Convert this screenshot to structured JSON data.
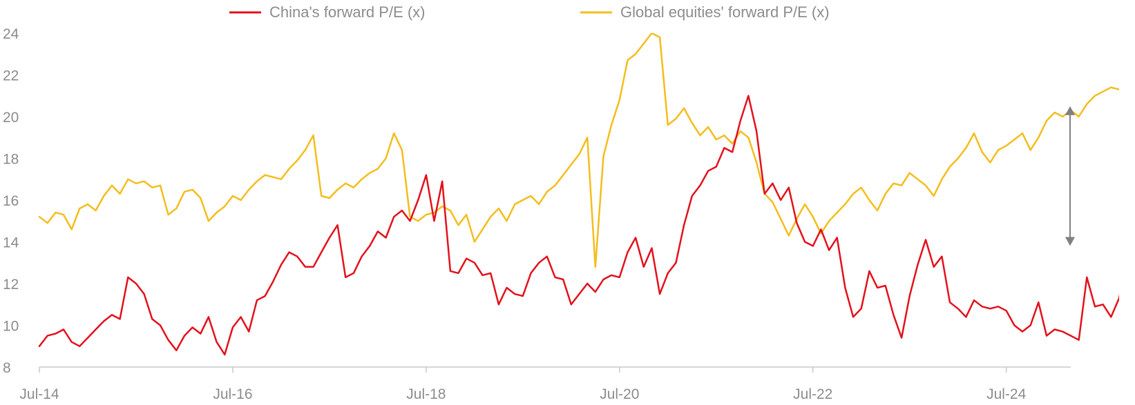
{
  "chart_data": {
    "type": "line",
    "title": "",
    "xlabel": "",
    "ylabel": "",
    "x_range": [
      "2014-07",
      "2025-03"
    ],
    "ylim": [
      8,
      24
    ],
    "y_ticks": [
      "8",
      "10",
      "12",
      "14",
      "16",
      "18",
      "20",
      "22",
      "24"
    ],
    "x_ticks": [
      {
        "date": "2014-07",
        "label": "Jul-14"
      },
      {
        "date": "2016-07",
        "label": "Jul-16"
      },
      {
        "date": "2018-07",
        "label": "Jul-18"
      },
      {
        "date": "2020-07",
        "label": "Jul-20"
      },
      {
        "date": "2022-07",
        "label": "Jul-22"
      },
      {
        "date": "2024-07",
        "label": "Jul-24"
      }
    ],
    "grid": false,
    "legend_position": "top-center",
    "annotation": {
      "type": "double-arrow",
      "date": "2025-02",
      "from": 13.8,
      "to": 20.5,
      "color": "#808080"
    },
    "series": [
      {
        "name": "China's forward P/E (x)",
        "color": "#e3101b",
        "points": [
          [
            "2014-07",
            9.0
          ],
          [
            "2014-08",
            9.5
          ],
          [
            "2014-09",
            9.6
          ],
          [
            "2014-10",
            9.8
          ],
          [
            "2014-11",
            9.2
          ],
          [
            "2014-12",
            9.0
          ],
          [
            "2015-01",
            9.4
          ],
          [
            "2015-02",
            9.8
          ],
          [
            "2015-03",
            10.2
          ],
          [
            "2015-04",
            10.5
          ],
          [
            "2015-05",
            10.3
          ],
          [
            "2015-06",
            12.3
          ],
          [
            "2015-07",
            12.0
          ],
          [
            "2015-08",
            11.5
          ],
          [
            "2015-09",
            10.3
          ],
          [
            "2015-10",
            10.0
          ],
          [
            "2015-11",
            9.3
          ],
          [
            "2015-12",
            8.8
          ],
          [
            "2016-01",
            9.5
          ],
          [
            "2016-02",
            9.9
          ],
          [
            "2016-03",
            9.6
          ],
          [
            "2016-04",
            10.4
          ],
          [
            "2016-05",
            9.2
          ],
          [
            "2016-06",
            8.6
          ],
          [
            "2016-07",
            9.9
          ],
          [
            "2016-08",
            10.4
          ],
          [
            "2016-09",
            9.7
          ],
          [
            "2016-10",
            11.2
          ],
          [
            "2016-11",
            11.4
          ],
          [
            "2016-12",
            12.1
          ],
          [
            "2017-01",
            12.9
          ],
          [
            "2017-02",
            13.5
          ],
          [
            "2017-03",
            13.3
          ],
          [
            "2017-04",
            12.8
          ],
          [
            "2017-05",
            12.8
          ],
          [
            "2017-06",
            13.5
          ],
          [
            "2017-07",
            14.2
          ],
          [
            "2017-08",
            14.8
          ],
          [
            "2017-09",
            12.3
          ],
          [
            "2017-10",
            12.5
          ],
          [
            "2017-11",
            13.3
          ],
          [
            "2017-12",
            13.8
          ],
          [
            "2018-01",
            14.5
          ],
          [
            "2018-02",
            14.2
          ],
          [
            "2018-03",
            15.2
          ],
          [
            "2018-04",
            15.5
          ],
          [
            "2018-05",
            15.0
          ],
          [
            "2018-06",
            16.0
          ],
          [
            "2018-07",
            17.2
          ],
          [
            "2018-08",
            15.0
          ],
          [
            "2018-09",
            16.9
          ],
          [
            "2018-10",
            12.6
          ],
          [
            "2018-11",
            12.5
          ],
          [
            "2018-12",
            13.2
          ],
          [
            "2019-01",
            13.0
          ],
          [
            "2019-02",
            12.4
          ],
          [
            "2019-03",
            12.5
          ],
          [
            "2019-04",
            11.0
          ],
          [
            "2019-05",
            11.8
          ],
          [
            "2019-06",
            11.5
          ],
          [
            "2019-07",
            11.4
          ],
          [
            "2019-08",
            12.5
          ],
          [
            "2019-09",
            13.0
          ],
          [
            "2019-10",
            13.3
          ],
          [
            "2019-11",
            12.3
          ],
          [
            "2019-12",
            12.2
          ],
          [
            "2020-01",
            11.0
          ],
          [
            "2020-02",
            11.5
          ],
          [
            "2020-03",
            12.0
          ],
          [
            "2020-04",
            11.6
          ],
          [
            "2020-05",
            12.2
          ],
          [
            "2020-06",
            12.4
          ],
          [
            "2020-07",
            12.3
          ],
          [
            "2020-08",
            13.5
          ],
          [
            "2020-09",
            14.2
          ],
          [
            "2020-10",
            12.8
          ],
          [
            "2020-11",
            13.7
          ],
          [
            "2020-12",
            11.5
          ],
          [
            "2021-01",
            12.5
          ],
          [
            "2021-02",
            13.0
          ],
          [
            "2021-03",
            14.8
          ],
          [
            "2021-04",
            16.2
          ],
          [
            "2021-05",
            16.7
          ],
          [
            "2021-06",
            17.4
          ],
          [
            "2021-07",
            17.6
          ],
          [
            "2021-08",
            18.5
          ],
          [
            "2021-09",
            18.3
          ],
          [
            "2021-10",
            19.8
          ],
          [
            "2021-11",
            21.0
          ],
          [
            "2021-12",
            19.3
          ],
          [
            "2022-01",
            16.3
          ],
          [
            "2022-02",
            16.8
          ],
          [
            "2022-03",
            16.0
          ],
          [
            "2022-04",
            16.6
          ],
          [
            "2022-05",
            14.9
          ],
          [
            "2022-06",
            14.0
          ],
          [
            "2022-07",
            13.8
          ],
          [
            "2022-08",
            14.6
          ],
          [
            "2022-09",
            13.6
          ],
          [
            "2022-10",
            14.2
          ],
          [
            "2022-11",
            11.8
          ],
          [
            "2022-12",
            10.4
          ],
          [
            "2023-01",
            10.8
          ],
          [
            "2023-02",
            12.6
          ],
          [
            "2023-03",
            11.8
          ],
          [
            "2023-04",
            11.9
          ],
          [
            "2023-05",
            10.5
          ],
          [
            "2023-06",
            9.4
          ],
          [
            "2023-07",
            11.4
          ],
          [
            "2023-08",
            12.9
          ],
          [
            "2023-09",
            14.1
          ],
          [
            "2023-10",
            12.8
          ],
          [
            "2023-11",
            13.3
          ],
          [
            "2023-12",
            11.1
          ],
          [
            "2024-01",
            10.8
          ],
          [
            "2024-02",
            10.4
          ],
          [
            "2024-03",
            11.2
          ],
          [
            "2024-04",
            10.9
          ],
          [
            "2024-05",
            10.8
          ],
          [
            "2024-06",
            10.9
          ],
          [
            "2024-07",
            10.7
          ],
          [
            "2024-08",
            10.0
          ],
          [
            "2024-09",
            9.7
          ],
          [
            "2024-10",
            10.0
          ],
          [
            "2024-11",
            11.1
          ],
          [
            "2024-12",
            9.5
          ],
          [
            "2025-01",
            9.8
          ],
          [
            "2025-02",
            9.7
          ],
          [
            "2025-03",
            9.5
          ],
          [
            "2025-04",
            9.3
          ],
          [
            "2025-05",
            12.3
          ],
          [
            "2025-06",
            10.9
          ],
          [
            "2025-07",
            11.0
          ],
          [
            "2025-08",
            10.4
          ],
          [
            "2025-09",
            11.3
          ],
          [
            "2025-10",
            13.1
          ]
        ]
      },
      {
        "name": "Global equities' forward P/E (x)",
        "color": "#f5bc1c",
        "points": [
          [
            "2014-07",
            15.2
          ],
          [
            "2014-08",
            14.9
          ],
          [
            "2014-09",
            15.4
          ],
          [
            "2014-10",
            15.3
          ],
          [
            "2014-11",
            14.6
          ],
          [
            "2014-12",
            15.6
          ],
          [
            "2015-01",
            15.8
          ],
          [
            "2015-02",
            15.5
          ],
          [
            "2015-03",
            16.2
          ],
          [
            "2015-04",
            16.7
          ],
          [
            "2015-05",
            16.3
          ],
          [
            "2015-06",
            17.0
          ],
          [
            "2015-07",
            16.8
          ],
          [
            "2015-08",
            16.9
          ],
          [
            "2015-09",
            16.6
          ],
          [
            "2015-10",
            16.7
          ],
          [
            "2015-11",
            15.3
          ],
          [
            "2015-12",
            15.6
          ],
          [
            "2016-01",
            16.4
          ],
          [
            "2016-02",
            16.5
          ],
          [
            "2016-03",
            16.1
          ],
          [
            "2016-04",
            15.0
          ],
          [
            "2016-05",
            15.4
          ],
          [
            "2016-06",
            15.7
          ],
          [
            "2016-07",
            16.2
          ],
          [
            "2016-08",
            16.0
          ],
          [
            "2016-09",
            16.5
          ],
          [
            "2016-10",
            16.9
          ],
          [
            "2016-11",
            17.2
          ],
          [
            "2016-12",
            17.1
          ],
          [
            "2017-01",
            17.0
          ],
          [
            "2017-02",
            17.5
          ],
          [
            "2017-03",
            17.9
          ],
          [
            "2017-04",
            18.4
          ],
          [
            "2017-05",
            19.1
          ],
          [
            "2017-06",
            16.2
          ],
          [
            "2017-07",
            16.1
          ],
          [
            "2017-08",
            16.5
          ],
          [
            "2017-09",
            16.8
          ],
          [
            "2017-10",
            16.6
          ],
          [
            "2017-11",
            17.0
          ],
          [
            "2017-12",
            17.3
          ],
          [
            "2018-01",
            17.5
          ],
          [
            "2018-02",
            18.0
          ],
          [
            "2018-03",
            19.2
          ],
          [
            "2018-04",
            18.4
          ],
          [
            "2018-05",
            15.2
          ],
          [
            "2018-06",
            15.0
          ],
          [
            "2018-07",
            15.3
          ],
          [
            "2018-08",
            15.4
          ],
          [
            "2018-09",
            15.7
          ],
          [
            "2018-10",
            15.5
          ],
          [
            "2018-11",
            14.8
          ],
          [
            "2018-12",
            15.3
          ],
          [
            "2019-01",
            14.0
          ],
          [
            "2019-02",
            14.6
          ],
          [
            "2019-03",
            15.2
          ],
          [
            "2019-04",
            15.6
          ],
          [
            "2019-05",
            15.0
          ],
          [
            "2019-06",
            15.8
          ],
          [
            "2019-07",
            16.0
          ],
          [
            "2019-08",
            16.2
          ],
          [
            "2019-09",
            15.8
          ],
          [
            "2019-10",
            16.4
          ],
          [
            "2019-11",
            16.7
          ],
          [
            "2019-12",
            17.2
          ],
          [
            "2020-01",
            17.7
          ],
          [
            "2020-02",
            18.2
          ],
          [
            "2020-03",
            19.0
          ],
          [
            "2020-04",
            12.8
          ],
          [
            "2020-05",
            18.1
          ],
          [
            "2020-06",
            19.6
          ],
          [
            "2020-07",
            20.8
          ],
          [
            "2020-08",
            22.7
          ],
          [
            "2020-09",
            23.0
          ],
          [
            "2020-10",
            23.5
          ],
          [
            "2020-11",
            24.0
          ],
          [
            "2020-12",
            23.8
          ],
          [
            "2021-01",
            19.6
          ],
          [
            "2021-02",
            19.9
          ],
          [
            "2021-03",
            20.4
          ],
          [
            "2021-04",
            19.7
          ],
          [
            "2021-05",
            19.1
          ],
          [
            "2021-06",
            19.5
          ],
          [
            "2021-07",
            18.9
          ],
          [
            "2021-08",
            19.1
          ],
          [
            "2021-09",
            18.7
          ],
          [
            "2021-10",
            19.3
          ],
          [
            "2021-11",
            19.0
          ],
          [
            "2021-12",
            17.8
          ],
          [
            "2022-01",
            16.3
          ],
          [
            "2022-02",
            15.9
          ],
          [
            "2022-03",
            15.1
          ],
          [
            "2022-04",
            14.3
          ],
          [
            "2022-05",
            15.1
          ],
          [
            "2022-06",
            15.8
          ],
          [
            "2022-07",
            15.2
          ],
          [
            "2022-08",
            14.4
          ],
          [
            "2022-09",
            15.0
          ],
          [
            "2022-10",
            15.4
          ],
          [
            "2022-11",
            15.8
          ],
          [
            "2022-12",
            16.3
          ],
          [
            "2023-01",
            16.6
          ],
          [
            "2023-02",
            16.0
          ],
          [
            "2023-03",
            15.5
          ],
          [
            "2023-04",
            16.3
          ],
          [
            "2023-05",
            16.8
          ],
          [
            "2023-06",
            16.7
          ],
          [
            "2023-07",
            17.3
          ],
          [
            "2023-08",
            17.0
          ],
          [
            "2023-09",
            16.7
          ],
          [
            "2023-10",
            16.2
          ],
          [
            "2023-11",
            17.0
          ],
          [
            "2023-12",
            17.6
          ],
          [
            "2024-01",
            18.0
          ],
          [
            "2024-02",
            18.5
          ],
          [
            "2024-03",
            19.2
          ],
          [
            "2024-04",
            18.3
          ],
          [
            "2024-05",
            17.8
          ],
          [
            "2024-06",
            18.4
          ],
          [
            "2024-07",
            18.6
          ],
          [
            "2024-08",
            18.9
          ],
          [
            "2024-09",
            19.2
          ],
          [
            "2024-10",
            18.4
          ],
          [
            "2024-11",
            19.0
          ],
          [
            "2024-12",
            19.8
          ],
          [
            "2025-01",
            20.2
          ],
          [
            "2025-02",
            20.0
          ],
          [
            "2025-03",
            20.3
          ],
          [
            "2025-04",
            20.0
          ],
          [
            "2025-05",
            20.6
          ],
          [
            "2025-06",
            21.0
          ],
          [
            "2025-07",
            21.2
          ],
          [
            "2025-08",
            21.4
          ],
          [
            "2025-09",
            21.3
          ],
          [
            "2025-10",
            21.5
          ]
        ]
      }
    ]
  }
}
